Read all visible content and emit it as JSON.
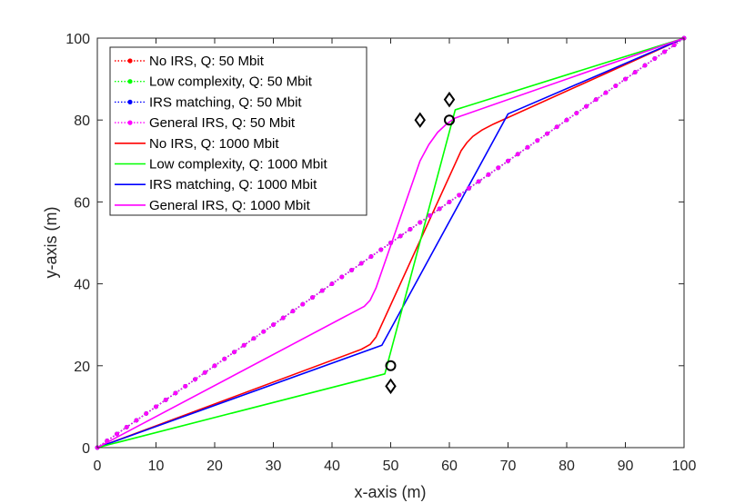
{
  "chart_data": {
    "type": "line",
    "title": "",
    "xlabel": "x-axis (m)",
    "ylabel": "y-axis (m)",
    "xlim": [
      0,
      100
    ],
    "ylim": [
      0,
      100
    ],
    "xticks": [
      "0",
      "10",
      "20",
      "30",
      "40",
      "50",
      "60",
      "70",
      "80",
      "90",
      "100"
    ],
    "yticks": [
      "0",
      "20",
      "40",
      "60",
      "80",
      "100"
    ],
    "legend_position": "top-left",
    "series": [
      {
        "name": "No IRS, Q: 50 Mbit",
        "color": "#ff0000",
        "style": "dotted-marker",
        "x": [
          0,
          100
        ],
        "y": [
          0,
          100
        ]
      },
      {
        "name": "Low complexity, Q: 50 Mbit",
        "color": "#00ff00",
        "style": "dotted-marker",
        "x": [
          0,
          100
        ],
        "y": [
          0,
          100
        ]
      },
      {
        "name": "IRS matching, Q: 50 Mbit",
        "color": "#0000ff",
        "style": "dotted-marker",
        "x": [
          0,
          100
        ],
        "y": [
          0,
          100
        ]
      },
      {
        "name": "General IRS, Q: 50 Mbit",
        "color": "#ff00ff",
        "style": "dotted-marker",
        "x": [
          0,
          100
        ],
        "y": [
          0,
          100
        ]
      },
      {
        "name": "No IRS, Q: 1000 Mbit",
        "color": "#ff0000",
        "style": "solid",
        "x": [
          0,
          45,
          46.5,
          47.5,
          62,
          63,
          64,
          65.5,
          67.5,
          100
        ],
        "y": [
          0,
          24,
          25.2,
          27,
          72.5,
          74.5,
          76,
          77.5,
          79,
          100
        ]
      },
      {
        "name": "Low complexity, Q: 1000 Mbit",
        "color": "#00ff00",
        "style": "solid",
        "x": [
          0,
          49,
          61,
          100
        ],
        "y": [
          0,
          18,
          82.5,
          100
        ]
      },
      {
        "name": "IRS matching, Q: 1000 Mbit",
        "color": "#0000ff",
        "style": "solid",
        "x": [
          0,
          48.5,
          70,
          100
        ],
        "y": [
          0,
          25,
          81.5,
          100
        ]
      },
      {
        "name": "General IRS, Q: 1000 Mbit",
        "color": "#ff00ff",
        "style": "solid",
        "x": [
          0,
          45.5,
          46.5,
          47.5,
          55,
          56.5,
          58,
          59.5,
          61,
          100
        ],
        "y": [
          0,
          34.5,
          36,
          39,
          70,
          74,
          77,
          79,
          80.5,
          100
        ]
      }
    ],
    "markers": [
      {
        "shape": "circle",
        "x": 50,
        "y": 20
      },
      {
        "shape": "circle",
        "x": 60,
        "y": 80
      },
      {
        "shape": "diamond",
        "x": 50,
        "y": 15
      },
      {
        "shape": "diamond",
        "x": 55,
        "y": 80
      },
      {
        "shape": "diamond",
        "x": 60,
        "y": 85
      }
    ]
  }
}
